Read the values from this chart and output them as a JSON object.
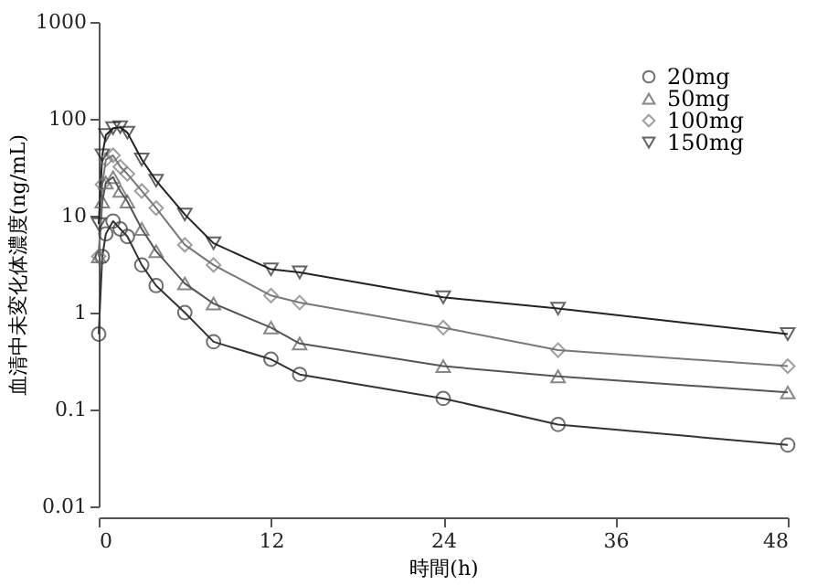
{
  "chart_data": {
    "type": "line",
    "xlabel": "時間(h)",
    "ylabel": "血清中未変化体濃度(ng/mL)",
    "x": [
      0,
      0.25,
      0.5,
      1,
      1.5,
      2,
      3,
      4,
      6,
      8,
      12,
      14,
      24,
      32,
      48
    ],
    "series": [
      {
        "name": "20mg",
        "color": "#333333",
        "marker": "circle",
        "values": [
          0.6,
          3.8,
          6.5,
          8.8,
          7.3,
          6.1,
          3.1,
          1.9,
          1.0,
          0.5,
          0.33,
          0.23,
          0.13,
          0.07,
          0.043
        ]
      },
      {
        "name": "50mg",
        "color": "#555555",
        "marker": "triangle",
        "values": [
          3.8,
          14,
          22,
          25,
          18,
          14,
          7.3,
          4.3,
          2.0,
          1.24,
          0.7,
          0.48,
          0.28,
          0.22,
          0.15
        ]
      },
      {
        "name": "100mg",
        "color": "#777777",
        "marker": "diamond",
        "values": [
          3.8,
          21,
          38,
          42,
          32,
          27,
          18,
          12,
          5,
          3.1,
          1.5,
          1.27,
          0.7,
          0.41,
          0.28
        ]
      },
      {
        "name": "150mg",
        "color": "#222222",
        "marker": "triangle-down",
        "values": [
          8.2,
          42,
          68,
          80,
          82,
          72,
          38,
          23,
          10.3,
          5.2,
          2.8,
          2.6,
          1.44,
          1.1,
          0.6
        ]
      }
    ],
    "xlim": [
      0,
      48
    ],
    "xticks": [
      0,
      12,
      24,
      36,
      48
    ],
    "ylim": [
      0.01,
      1000
    ],
    "yticks": [
      0.01,
      0.1,
      1,
      10,
      100,
      1000
    ],
    "log": "y",
    "grid": false,
    "legend": "top right",
    "line_style": "solid"
  }
}
